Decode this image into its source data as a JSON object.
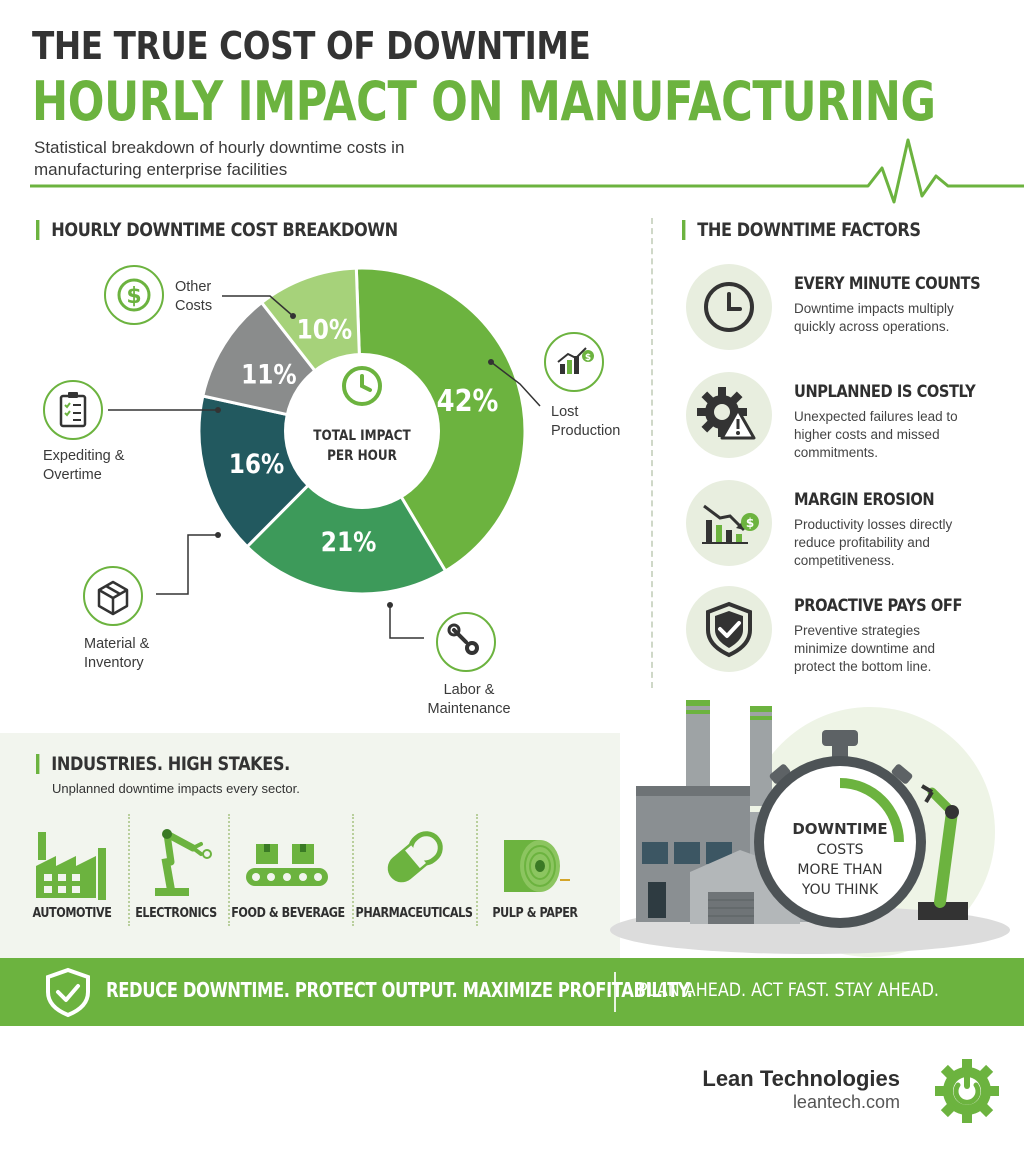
{
  "header": {
    "title_line1": "THE TRUE COST OF DOWNTIME",
    "title_line2": "HOURLY IMPACT ON MANUFACTURING",
    "subtitle": "Statistical breakdown of hourly downtime costs in manufacturing enterprise facilities"
  },
  "pie_section": {
    "heading": "HOURLY DOWNTIME COST BREAKDOWN",
    "center_label_line1": "TOTAL IMPACT",
    "center_label_line2": "PER HOUR"
  },
  "chart_data": {
    "type": "pie",
    "categories": [
      "Lost Production",
      "Labor & Maintenance",
      "Material & Inventory",
      "Expediting & Overtime",
      "Other Costs"
    ],
    "values": [
      42,
      21,
      16,
      11,
      10
    ],
    "unit": "%",
    "data_labels": [
      "42%",
      "21%",
      "16%",
      "11%",
      "10%"
    ],
    "colors": [
      "#6cb33f",
      "#3d9a5a",
      "#22595f",
      "#8a8c8c",
      "#a6d27a"
    ],
    "legend_lines": [
      [
        "Lost",
        "Production"
      ],
      [
        "Labor &",
        "Maintenance"
      ],
      [
        "Material &",
        "Inventory"
      ],
      [
        "Expediting &",
        "Overtime"
      ],
      [
        "Other",
        "Costs"
      ]
    ],
    "legend_icons": [
      "growth-chart-icon",
      "wrench-gear-icon",
      "box-icon",
      "clipboard-icon",
      "dollar-coin-icon"
    ]
  },
  "factors": {
    "heading": "THE DOWNTIME FACTORS",
    "items": [
      {
        "title": "EVERY MINUTE COUNTS",
        "desc": "Downtime impacts multiply quickly across operations.",
        "icon": "clock-icon"
      },
      {
        "title": "UNPLANNED IS COSTLY",
        "desc": "Unexpected failures lead to higher costs and missed commitments.",
        "icon": "gear-warning-icon"
      },
      {
        "title": "MARGIN EROSION",
        "desc": "Productivity losses directly reduce profitability and competitiveness.",
        "icon": "declining-chart-icon"
      },
      {
        "title": "PROACTIVE PAYS OFF",
        "desc": "Preventive strategies minimize downtime and protect the bottom line.",
        "icon": "shield-check-icon"
      }
    ]
  },
  "industries": {
    "heading": "INDUSTRIES. HIGH STAKES.",
    "subheading": "Unplanned downtime impacts every sector.",
    "items": [
      {
        "label": "AUTOMOTIVE",
        "icon": "factory-icon"
      },
      {
        "label": "ELECTRONICS",
        "icon": "robot-arm-icon"
      },
      {
        "label": "FOOD & BEVERAGE",
        "icon": "conveyor-icon"
      },
      {
        "label": "PHARMACEUTICALS",
        "icon": "capsule-icon"
      },
      {
        "label": "PULP & PAPER",
        "icon": "paper-roll-icon"
      }
    ]
  },
  "stopwatch": {
    "line1": "DOWNTIME",
    "line2": "COSTS",
    "line3": "MORE THAN",
    "line4": "YOU THINK"
  },
  "banner": {
    "left_text": "REDUCE DOWNTIME. PROTECT OUTPUT. MAXIMIZE PROFITABILITY.",
    "right_text": "PLAN AHEAD. ACT FAST. STAY AHEAD."
  },
  "brand": {
    "name": "Lean Technologies",
    "url": "leantech.com"
  },
  "colors": {
    "accent_green": "#6cb33f",
    "dark_text": "#333333",
    "light_panel": "#f2f5ee"
  }
}
